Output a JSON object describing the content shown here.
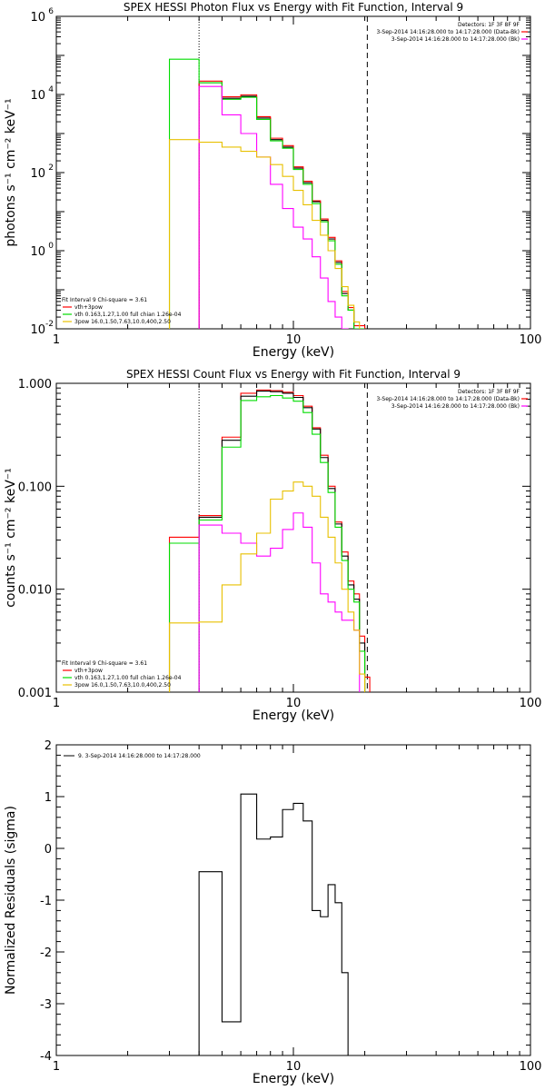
{
  "chart_data": [
    {
      "type": "line",
      "title": "SPEX HESSI Photon Flux vs Energy with Fit Function, Interval 9",
      "xlabel": "Energy (keV)",
      "ylabel": "photons s⁻¹ cm⁻² keV⁻¹",
      "xscale": "log",
      "yscale": "log",
      "xlim": [
        1,
        100
      ],
      "ylim": [
        0.01,
        1000000
      ],
      "xticks": [
        {
          "v": 1,
          "label": "1"
        },
        {
          "v": 10,
          "label": "10"
        },
        {
          "v": 100,
          "label": "100"
        }
      ],
      "yticks": [
        {
          "v": 0.01,
          "label": "10",
          "sup": "-2"
        },
        {
          "v": 1,
          "label": "10",
          "sup": "0"
        },
        {
          "v": 100,
          "label": "10",
          "sup": "2"
        },
        {
          "v": 10000,
          "label": "10",
          "sup": "4"
        },
        {
          "v": 1000000,
          "label": "10",
          "sup": "6"
        }
      ],
      "vlines": [
        {
          "x": 4,
          "style": "dotted"
        },
        {
          "x": 20.5,
          "style": "dashed"
        }
      ],
      "legend_top": [
        "Detectors: 1F 3F 8F 9F",
        "3-Sep-2014 14:16:28.000 to 14:17:28.000 (Data-Bk)",
        "3-Sep-2014 14:16:28.000 to 14:17:28.000 (Bk)"
      ],
      "legend_bottom": [
        "Fit Interval 9    Chi-square = 3.61",
        "vth+3pow",
        "vth 0.163,1.27,1.00  full chian 1.26e-04",
        "3pow 16.0,1.50,7.63,10.0,400,2.50"
      ],
      "edges": [
        3,
        4,
        5,
        6,
        7,
        8,
        9,
        10,
        11,
        12,
        13,
        14,
        15,
        16,
        17,
        18,
        19,
        20,
        21
      ],
      "series": [
        {
          "color": "#000000",
          "values": [
            null,
            20000,
            8000,
            9000,
            2500,
            700,
            450,
            130,
            55,
            18,
            6,
            2,
            0.5,
            0.08,
            0.03,
            0.01,
            0.01,
            null
          ]
        },
        {
          "color": "#ff0000",
          "values": [
            null,
            22000,
            8700,
            9800,
            2700,
            760,
            490,
            140,
            60,
            19,
            6.5,
            2.2,
            0.55,
            0.09,
            0.035,
            0.012,
            0.012,
            0.005
          ]
        },
        {
          "color": "#00dd00",
          "values": [
            80000,
            20000,
            7500,
            8500,
            2300,
            650,
            420,
            120,
            50,
            16,
            5.5,
            1.8,
            0.45,
            0.07,
            0.03,
            0.01,
            0.01,
            null
          ]
        },
        {
          "color": "#ff00ff",
          "values": [
            null,
            16000,
            3000,
            1000,
            250,
            50,
            12,
            4,
            2,
            0.7,
            0.2,
            0.05,
            0.02,
            0.01,
            0.005,
            null,
            null,
            null
          ]
        },
        {
          "color": "#e8c000",
          "values": [
            700,
            600,
            450,
            350,
            250,
            160,
            80,
            35,
            15,
            6,
            2.5,
            1,
            0.35,
            0.12,
            0.04,
            0.015,
            null,
            null
          ]
        }
      ]
    },
    {
      "type": "line",
      "title": "SPEX HESSI Count Flux vs Energy with Fit Function, Interval 9",
      "xlabel": "Energy (keV)",
      "ylabel": "counts s⁻¹ cm⁻² keV⁻¹",
      "xscale": "log",
      "yscale": "log",
      "xlim": [
        1,
        100
      ],
      "ylim": [
        0.001,
        1.0
      ],
      "xticks": [
        {
          "v": 1,
          "label": "1"
        },
        {
          "v": 10,
          "label": "10"
        },
        {
          "v": 100,
          "label": "100"
        }
      ],
      "yticks": [
        {
          "v": 0.001,
          "label": "0.001"
        },
        {
          "v": 0.01,
          "label": "0.010"
        },
        {
          "v": 0.1,
          "label": "0.100"
        },
        {
          "v": 1,
          "label": "1.000"
        }
      ],
      "vlines": [
        {
          "x": 4,
          "style": "dotted"
        },
        {
          "x": 20.5,
          "style": "dashed"
        }
      ],
      "legend_top": [
        "Detectors: 1F 3F 8F 9F",
        "3-Sep-2014 14:16:28.000 to 14:17:28.000 (Data-Bk)",
        "3-Sep-2014 14:16:28.000 to 14:17:28.000 (Bk)"
      ],
      "legend_bottom": [
        "Fit Interval 9    Chi-square = 3.61",
        "vth+3pow",
        "vth 0.163,1.27,1.00  full chian 1.26e-04",
        "3pow 16.0,1.50,7.63,10.0,400,2.50"
      ],
      "edges": [
        3,
        4,
        5,
        6,
        7,
        8,
        9,
        10,
        11,
        12,
        13,
        14,
        15,
        16,
        17,
        18,
        19,
        20,
        21
      ],
      "series": [
        {
          "color": "#ff0000",
          "values": [
            0.032,
            0.052,
            0.3,
            0.8,
            0.86,
            0.85,
            0.82,
            0.76,
            0.6,
            0.37,
            0.2,
            0.1,
            0.045,
            0.023,
            0.012,
            0.009,
            0.0035,
            0.0014
          ]
        },
        {
          "color": "#000000",
          "values": [
            null,
            0.05,
            0.28,
            0.75,
            0.84,
            0.83,
            0.8,
            0.73,
            0.58,
            0.36,
            0.19,
            0.095,
            0.043,
            0.021,
            0.011,
            0.008,
            0.003,
            null
          ]
        },
        {
          "color": "#00dd00",
          "values": [
            0.028,
            0.047,
            0.24,
            0.68,
            0.74,
            0.76,
            0.72,
            0.67,
            0.52,
            0.32,
            0.17,
            0.087,
            0.04,
            0.019,
            0.01,
            0.0075,
            0.0025,
            null
          ]
        },
        {
          "color": "#ff00ff",
          "values": [
            null,
            0.042,
            0.035,
            0.028,
            0.021,
            0.025,
            0.038,
            0.055,
            0.04,
            0.018,
            0.009,
            0.0075,
            0.006,
            0.005,
            0.005,
            0.004,
            null,
            null
          ]
        },
        {
          "color": "#e8c000",
          "values": [
            0.0047,
            0.0048,
            0.011,
            0.022,
            0.035,
            0.075,
            0.09,
            0.11,
            0.1,
            0.08,
            0.05,
            0.032,
            0.018,
            0.01,
            0.006,
            0.004,
            0.0015,
            null
          ]
        }
      ]
    },
    {
      "type": "line",
      "title": "",
      "xlabel": "Energy (keV)",
      "ylabel": "Normalized Residuals (sigma)",
      "xscale": "log",
      "yscale": "linear",
      "xlim": [
        1,
        100
      ],
      "ylim": [
        -4,
        2
      ],
      "xticks": [
        {
          "v": 1,
          "label": "1"
        },
        {
          "v": 10,
          "label": "10"
        },
        {
          "v": 100,
          "label": "100"
        }
      ],
      "yticks": [
        {
          "v": -4,
          "label": "-4"
        },
        {
          "v": -3,
          "label": "-3"
        },
        {
          "v": -2,
          "label": "-2"
        },
        {
          "v": -1,
          "label": "-1"
        },
        {
          "v": 0,
          "label": "0"
        },
        {
          "v": 1,
          "label": "1"
        },
        {
          "v": 2,
          "label": "2"
        }
      ],
      "legend_top_left": "9.  3-Sep-2014 14:16:28.000 to 14:17:28.000",
      "edges": [
        4,
        5,
        6,
        7,
        8,
        9,
        10,
        11,
        12,
        13,
        14,
        15,
        16,
        17,
        18,
        19,
        20
      ],
      "series": [
        {
          "color": "#000000",
          "values": [
            -0.45,
            -3.35,
            1.05,
            0.18,
            0.22,
            0.75,
            0.87,
            0.53,
            -1.2,
            -1.32,
            -0.7,
            -1.05,
            -2.4,
            null,
            null,
            null
          ]
        }
      ]
    }
  ]
}
